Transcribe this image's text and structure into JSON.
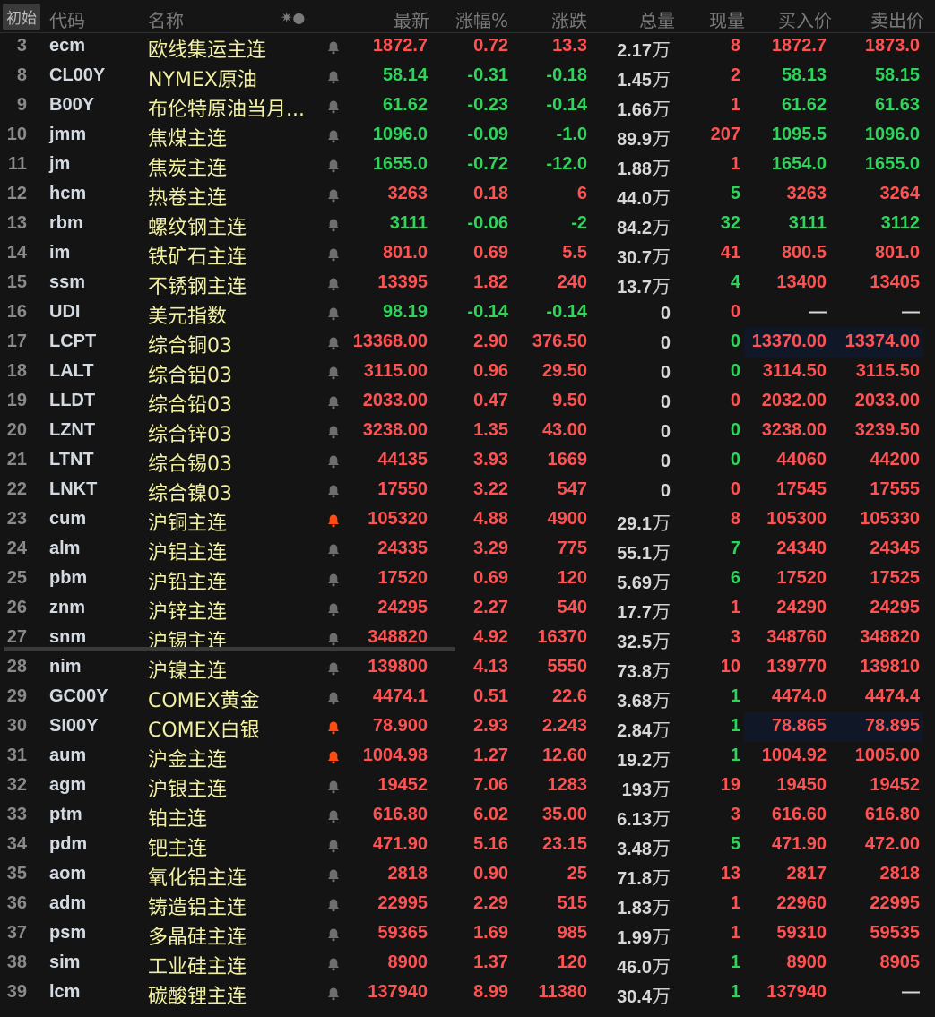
{
  "header": {
    "init": "初始",
    "code": "代码",
    "name": "名称",
    "icons": "✷●",
    "last": "最新",
    "pct": "涨幅%",
    "chg": "涨跌",
    "vol": "总量",
    "cur": "现量",
    "bid": "买入价",
    "ask": "卖出价"
  },
  "colors": {
    "up": "#ff5252",
    "down": "#2fd45b",
    "name": "#f2f0a2",
    "bell_active": "#ff4a12",
    "bell": "#6e6e6e"
  },
  "rows": [
    {
      "n": "3",
      "code": "ecm",
      "name": "欧线集运主连",
      "bell": false,
      "last": "1872.7",
      "pct": "0.72",
      "chg": "13.3",
      "vol": "2.17",
      "unit": "万",
      "cur": "8",
      "cur_dir": "up",
      "bid": "1872.7",
      "ask": "1873.0",
      "dir": "up"
    },
    {
      "n": "8",
      "code": "CL00Y",
      "name": "NYMEX原油",
      "bell": false,
      "last": "58.14",
      "pct": "-0.31",
      "chg": "-0.18",
      "vol": "1.45",
      "unit": "万",
      "cur": "2",
      "cur_dir": "up",
      "bid": "58.13",
      "ask": "58.15",
      "dir": "down"
    },
    {
      "n": "9",
      "code": "B00Y",
      "name": "布伦特原油当月...",
      "bell": false,
      "last": "61.62",
      "pct": "-0.23",
      "chg": "-0.14",
      "vol": "1.66",
      "unit": "万",
      "cur": "1",
      "cur_dir": "up",
      "bid": "61.62",
      "ask": "61.63",
      "dir": "down"
    },
    {
      "n": "10",
      "code": "jmm",
      "name": "焦煤主连",
      "bell": false,
      "last": "1096.0",
      "pct": "-0.09",
      "chg": "-1.0",
      "vol": "89.9",
      "unit": "万",
      "cur": "207",
      "cur_dir": "up",
      "bid": "1095.5",
      "ask": "1096.0",
      "dir": "down"
    },
    {
      "n": "11",
      "code": "jm",
      "name": "焦炭主连",
      "bell": false,
      "last": "1655.0",
      "pct": "-0.72",
      "chg": "-12.0",
      "vol": "1.88",
      "unit": "万",
      "cur": "1",
      "cur_dir": "up",
      "bid": "1654.0",
      "ask": "1655.0",
      "dir": "down"
    },
    {
      "n": "12",
      "code": "hcm",
      "name": "热卷主连",
      "bell": false,
      "last": "3263",
      "pct": "0.18",
      "chg": "6",
      "vol": "44.0",
      "unit": "万",
      "cur": "5",
      "cur_dir": "down",
      "bid": "3263",
      "ask": "3264",
      "dir": "up"
    },
    {
      "n": "13",
      "code": "rbm",
      "name": "螺纹钢主连",
      "bell": false,
      "last": "3111",
      "pct": "-0.06",
      "chg": "-2",
      "vol": "84.2",
      "unit": "万",
      "cur": "32",
      "cur_dir": "down",
      "bid": "3111",
      "ask": "3112",
      "dir": "down"
    },
    {
      "n": "14",
      "code": "im",
      "name": "铁矿石主连",
      "bell": false,
      "last": "801.0",
      "pct": "0.69",
      "chg": "5.5",
      "vol": "30.7",
      "unit": "万",
      "cur": "41",
      "cur_dir": "up",
      "bid": "800.5",
      "ask": "801.0",
      "dir": "up"
    },
    {
      "n": "15",
      "code": "ssm",
      "name": "不锈钢主连",
      "bell": false,
      "last": "13395",
      "pct": "1.82",
      "chg": "240",
      "vol": "13.7",
      "unit": "万",
      "cur": "4",
      "cur_dir": "down",
      "bid": "13400",
      "ask": "13405",
      "dir": "up"
    },
    {
      "n": "16",
      "code": "UDI",
      "name": "美元指数",
      "bell": false,
      "last": "98.19",
      "pct": "-0.14",
      "chg": "-0.14",
      "vol": "0",
      "unit": "",
      "cur": "0",
      "cur_dir": "up",
      "bid": "—",
      "ask": "—",
      "dir": "down",
      "quote_dir": "neutral"
    },
    {
      "n": "17",
      "code": "LCPT",
      "name": "综合铜03",
      "bell": false,
      "last": "13368.00",
      "pct": "2.90",
      "chg": "376.50",
      "vol": "0",
      "unit": "",
      "cur": "0",
      "cur_dir": "down",
      "bid": "13370.00",
      "ask": "13374.00",
      "dir": "up",
      "selected": true
    },
    {
      "n": "18",
      "code": "LALT",
      "name": "综合铝03",
      "bell": false,
      "last": "3115.00",
      "pct": "0.96",
      "chg": "29.50",
      "vol": "0",
      "unit": "",
      "cur": "0",
      "cur_dir": "down",
      "bid": "3114.50",
      "ask": "3115.50",
      "dir": "up"
    },
    {
      "n": "19",
      "code": "LLDT",
      "name": "综合铅03",
      "bell": false,
      "last": "2033.00",
      "pct": "0.47",
      "chg": "9.50",
      "vol": "0",
      "unit": "",
      "cur": "0",
      "cur_dir": "up",
      "bid": "2032.00",
      "ask": "2033.00",
      "dir": "up"
    },
    {
      "n": "20",
      "code": "LZNT",
      "name": "综合锌03",
      "bell": false,
      "last": "3238.00",
      "pct": "1.35",
      "chg": "43.00",
      "vol": "0",
      "unit": "",
      "cur": "0",
      "cur_dir": "down",
      "bid": "3238.00",
      "ask": "3239.50",
      "dir": "up"
    },
    {
      "n": "21",
      "code": "LTNT",
      "name": "综合锡03",
      "bell": false,
      "last": "44135",
      "pct": "3.93",
      "chg": "1669",
      "vol": "0",
      "unit": "",
      "cur": "0",
      "cur_dir": "down",
      "bid": "44060",
      "ask": "44200",
      "dir": "up"
    },
    {
      "n": "22",
      "code": "LNKT",
      "name": "综合镍03",
      "bell": false,
      "last": "17550",
      "pct": "3.22",
      "chg": "547",
      "vol": "0",
      "unit": "",
      "cur": "0",
      "cur_dir": "up",
      "bid": "17545",
      "ask": "17555",
      "dir": "up"
    },
    {
      "n": "23",
      "code": "cum",
      "name": "沪铜主连",
      "bell": true,
      "last": "105320",
      "pct": "4.88",
      "chg": "4900",
      "vol": "29.1",
      "unit": "万",
      "cur": "8",
      "cur_dir": "up",
      "bid": "105300",
      "ask": "105330",
      "dir": "up"
    },
    {
      "n": "24",
      "code": "alm",
      "name": "沪铝主连",
      "bell": false,
      "last": "24335",
      "pct": "3.29",
      "chg": "775",
      "vol": "55.1",
      "unit": "万",
      "cur": "7",
      "cur_dir": "down",
      "bid": "24340",
      "ask": "24345",
      "dir": "up"
    },
    {
      "n": "25",
      "code": "pbm",
      "name": "沪铅主连",
      "bell": false,
      "last": "17520",
      "pct": "0.69",
      "chg": "120",
      "vol": "5.69",
      "unit": "万",
      "cur": "6",
      "cur_dir": "down",
      "bid": "17520",
      "ask": "17525",
      "dir": "up"
    },
    {
      "n": "26",
      "code": "znm",
      "name": "沪锌主连",
      "bell": false,
      "last": "24295",
      "pct": "2.27",
      "chg": "540",
      "vol": "17.7",
      "unit": "万",
      "cur": "1",
      "cur_dir": "up",
      "bid": "24290",
      "ask": "24295",
      "dir": "up"
    },
    {
      "n": "27",
      "code": "snm",
      "name": "沪锡主连",
      "bell": false,
      "last": "348820",
      "pct": "4.92",
      "chg": "16370",
      "vol": "32.5",
      "unit": "万",
      "cur": "3",
      "cur_dir": "up",
      "bid": "348760",
      "ask": "348820",
      "dir": "up"
    },
    {
      "n": "28",
      "code": "nim",
      "name": "沪镍主连",
      "bell": false,
      "last": "139800",
      "pct": "4.13",
      "chg": "5550",
      "vol": "73.8",
      "unit": "万",
      "cur": "10",
      "cur_dir": "up",
      "bid": "139770",
      "ask": "139810",
      "dir": "up"
    },
    {
      "n": "29",
      "code": "GC00Y",
      "name": "COMEX黄金",
      "bell": false,
      "last": "4474.1",
      "pct": "0.51",
      "chg": "22.6",
      "vol": "3.68",
      "unit": "万",
      "cur": "1",
      "cur_dir": "down",
      "bid": "4474.0",
      "ask": "4474.4",
      "dir": "up"
    },
    {
      "n": "30",
      "code": "SI00Y",
      "name": "COMEX白银",
      "bell": true,
      "last": "78.900",
      "pct": "2.93",
      "chg": "2.243",
      "vol": "2.84",
      "unit": "万",
      "cur": "1",
      "cur_dir": "down",
      "bid": "78.865",
      "ask": "78.895",
      "dir": "up",
      "selected": true
    },
    {
      "n": "31",
      "code": "aum",
      "name": "沪金主连",
      "bell": true,
      "last": "1004.98",
      "pct": "1.27",
      "chg": "12.60",
      "vol": "19.2",
      "unit": "万",
      "cur": "1",
      "cur_dir": "down",
      "bid": "1004.92",
      "ask": "1005.00",
      "dir": "up"
    },
    {
      "n": "32",
      "code": "agm",
      "name": "沪银主连",
      "bell": false,
      "last": "19452",
      "pct": "7.06",
      "chg": "1283",
      "vol": "193",
      "unit": "万",
      "cur": "19",
      "cur_dir": "up",
      "bid": "19450",
      "ask": "19452",
      "dir": "up"
    },
    {
      "n": "33",
      "code": "ptm",
      "name": "铂主连",
      "bell": false,
      "last": "616.80",
      "pct": "6.02",
      "chg": "35.00",
      "vol": "6.13",
      "unit": "万",
      "cur": "3",
      "cur_dir": "up",
      "bid": "616.60",
      "ask": "616.80",
      "dir": "up"
    },
    {
      "n": "34",
      "code": "pdm",
      "name": "钯主连",
      "bell": false,
      "last": "471.90",
      "pct": "5.16",
      "chg": "23.15",
      "vol": "3.48",
      "unit": "万",
      "cur": "5",
      "cur_dir": "down",
      "bid": "471.90",
      "ask": "472.00",
      "dir": "up"
    },
    {
      "n": "35",
      "code": "aom",
      "name": "氧化铝主连",
      "bell": false,
      "last": "2818",
      "pct": "0.90",
      "chg": "25",
      "vol": "71.8",
      "unit": "万",
      "cur": "13",
      "cur_dir": "up",
      "bid": "2817",
      "ask": "2818",
      "dir": "up"
    },
    {
      "n": "36",
      "code": "adm",
      "name": "铸造铝主连",
      "bell": false,
      "last": "22995",
      "pct": "2.29",
      "chg": "515",
      "vol": "1.83",
      "unit": "万",
      "cur": "1",
      "cur_dir": "up",
      "bid": "22960",
      "ask": "22995",
      "dir": "up"
    },
    {
      "n": "37",
      "code": "psm",
      "name": "多晶硅主连",
      "bell": false,
      "last": "59365",
      "pct": "1.69",
      "chg": "985",
      "vol": "1.99",
      "unit": "万",
      "cur": "1",
      "cur_dir": "up",
      "bid": "59310",
      "ask": "59535",
      "dir": "up"
    },
    {
      "n": "38",
      "code": "sim",
      "name": "工业硅主连",
      "bell": false,
      "last": "8900",
      "pct": "1.37",
      "chg": "120",
      "vol": "46.0",
      "unit": "万",
      "cur": "1",
      "cur_dir": "down",
      "bid": "8900",
      "ask": "8905",
      "dir": "up"
    },
    {
      "n": "39",
      "code": "lcm",
      "name": "碳酸锂主连",
      "bell": false,
      "last": "137940",
      "pct": "8.99",
      "chg": "11380",
      "vol": "30.4",
      "unit": "万",
      "cur": "1",
      "cur_dir": "down",
      "bid": "137940",
      "ask": "—",
      "dir": "up",
      "ask_dir": "neutral"
    }
  ]
}
